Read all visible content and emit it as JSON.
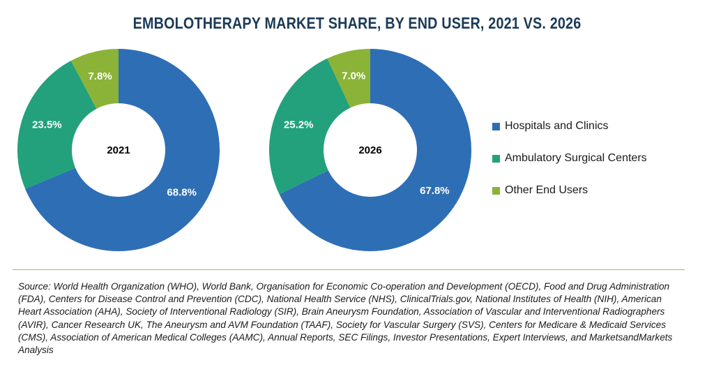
{
  "chart_data": {
    "type": "pie",
    "variant": "donut",
    "title": "EMBOLOTHERAPY MARKET SHARE, BY END USER, 2021 VS. 2026",
    "legend_position": "right",
    "categories": [
      "Hospitals and Clinics",
      "Ambulatory Surgical Centers",
      "Other End Users"
    ],
    "colors": [
      "#2e6eb5",
      "#22a17c",
      "#8bb338"
    ],
    "charts": [
      {
        "center_label": "2021",
        "values": [
          68.8,
          23.5,
          7.8
        ],
        "labels": [
          "68.8%",
          "23.5%",
          "7.8%"
        ]
      },
      {
        "center_label": "2026",
        "values": [
          67.8,
          25.2,
          7.0
        ],
        "labels": [
          "67.8%",
          "25.2%",
          "7.0%"
        ]
      }
    ]
  },
  "source_text": "Source: World Health Organization (WHO), World Bank, Organisation for Economic Co-operation and Development (OECD), Food and Drug Administration (FDA), Centers for Disease Control and Prevention (CDC), National Health Service (NHS), ClinicalTrials.gov, National Institutes of Health (NIH), American Heart Association (AHA), Society of Interventional Radiology (SIR), Brain Aneurysm Foundation, Association of Vascular and Interventional Radiographers (AVIR), Cancer Research UK, The Aneurysm and AVM Foundation (TAAF), Society for Vascular Surgery (SVS), Centers for Medicare & Medicaid Services (CMS), Association of American Medical Colleges (AAMC), Annual Reports, SEC Filings, Investor Presentations, Expert Interviews, and MarketsandMarkets Analysis"
}
